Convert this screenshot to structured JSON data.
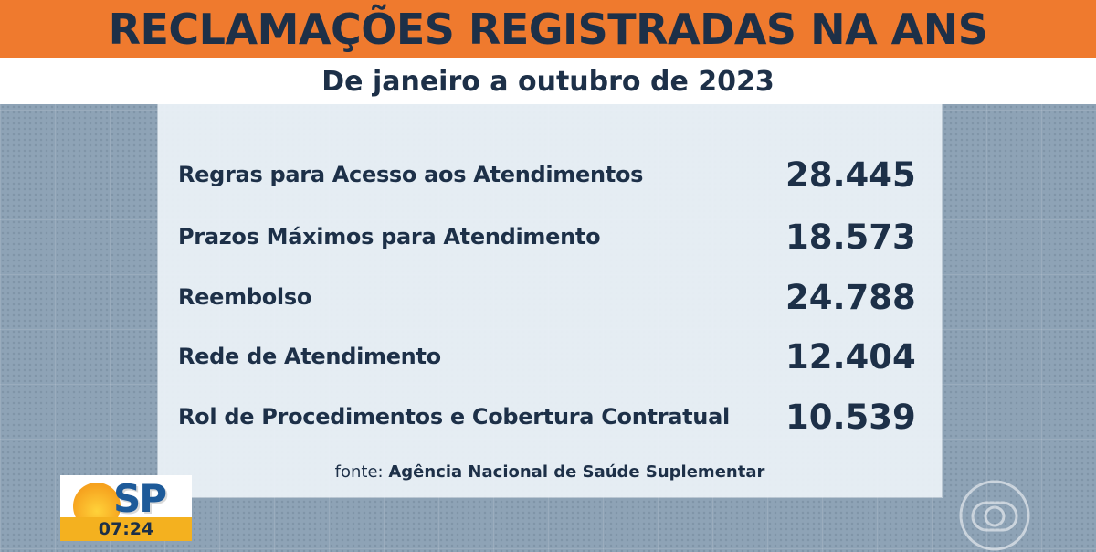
{
  "header": {
    "title": "RECLAMAÇÕES REGISTRADAS NA ANS",
    "subtitle": "De janeiro a outubro de 2023"
  },
  "complaints": [
    {
      "category": "Regras para Acesso aos Atendimentos",
      "count": "28.445"
    },
    {
      "category": "Prazos Máximos para Atendimento",
      "count": "18.573"
    },
    {
      "category": "Reembolso",
      "count": "24.788"
    },
    {
      "category": "Rede de Atendimento",
      "count": "12.404"
    },
    {
      "category": "Rol de Procedimentos e Cobertura Contratual",
      "count": "10.539"
    }
  ],
  "source": {
    "prefix": "fonte:",
    "name": "Agência Nacional de Saúde Suplementar"
  },
  "program": {
    "logo_text": "SP",
    "clock": "07:24"
  },
  "colors": {
    "banner": "#ef7a2e",
    "text": "#1d3048",
    "clock_bar": "#f4b11f"
  },
  "icons": {
    "network_watermark": "globo-icon"
  }
}
